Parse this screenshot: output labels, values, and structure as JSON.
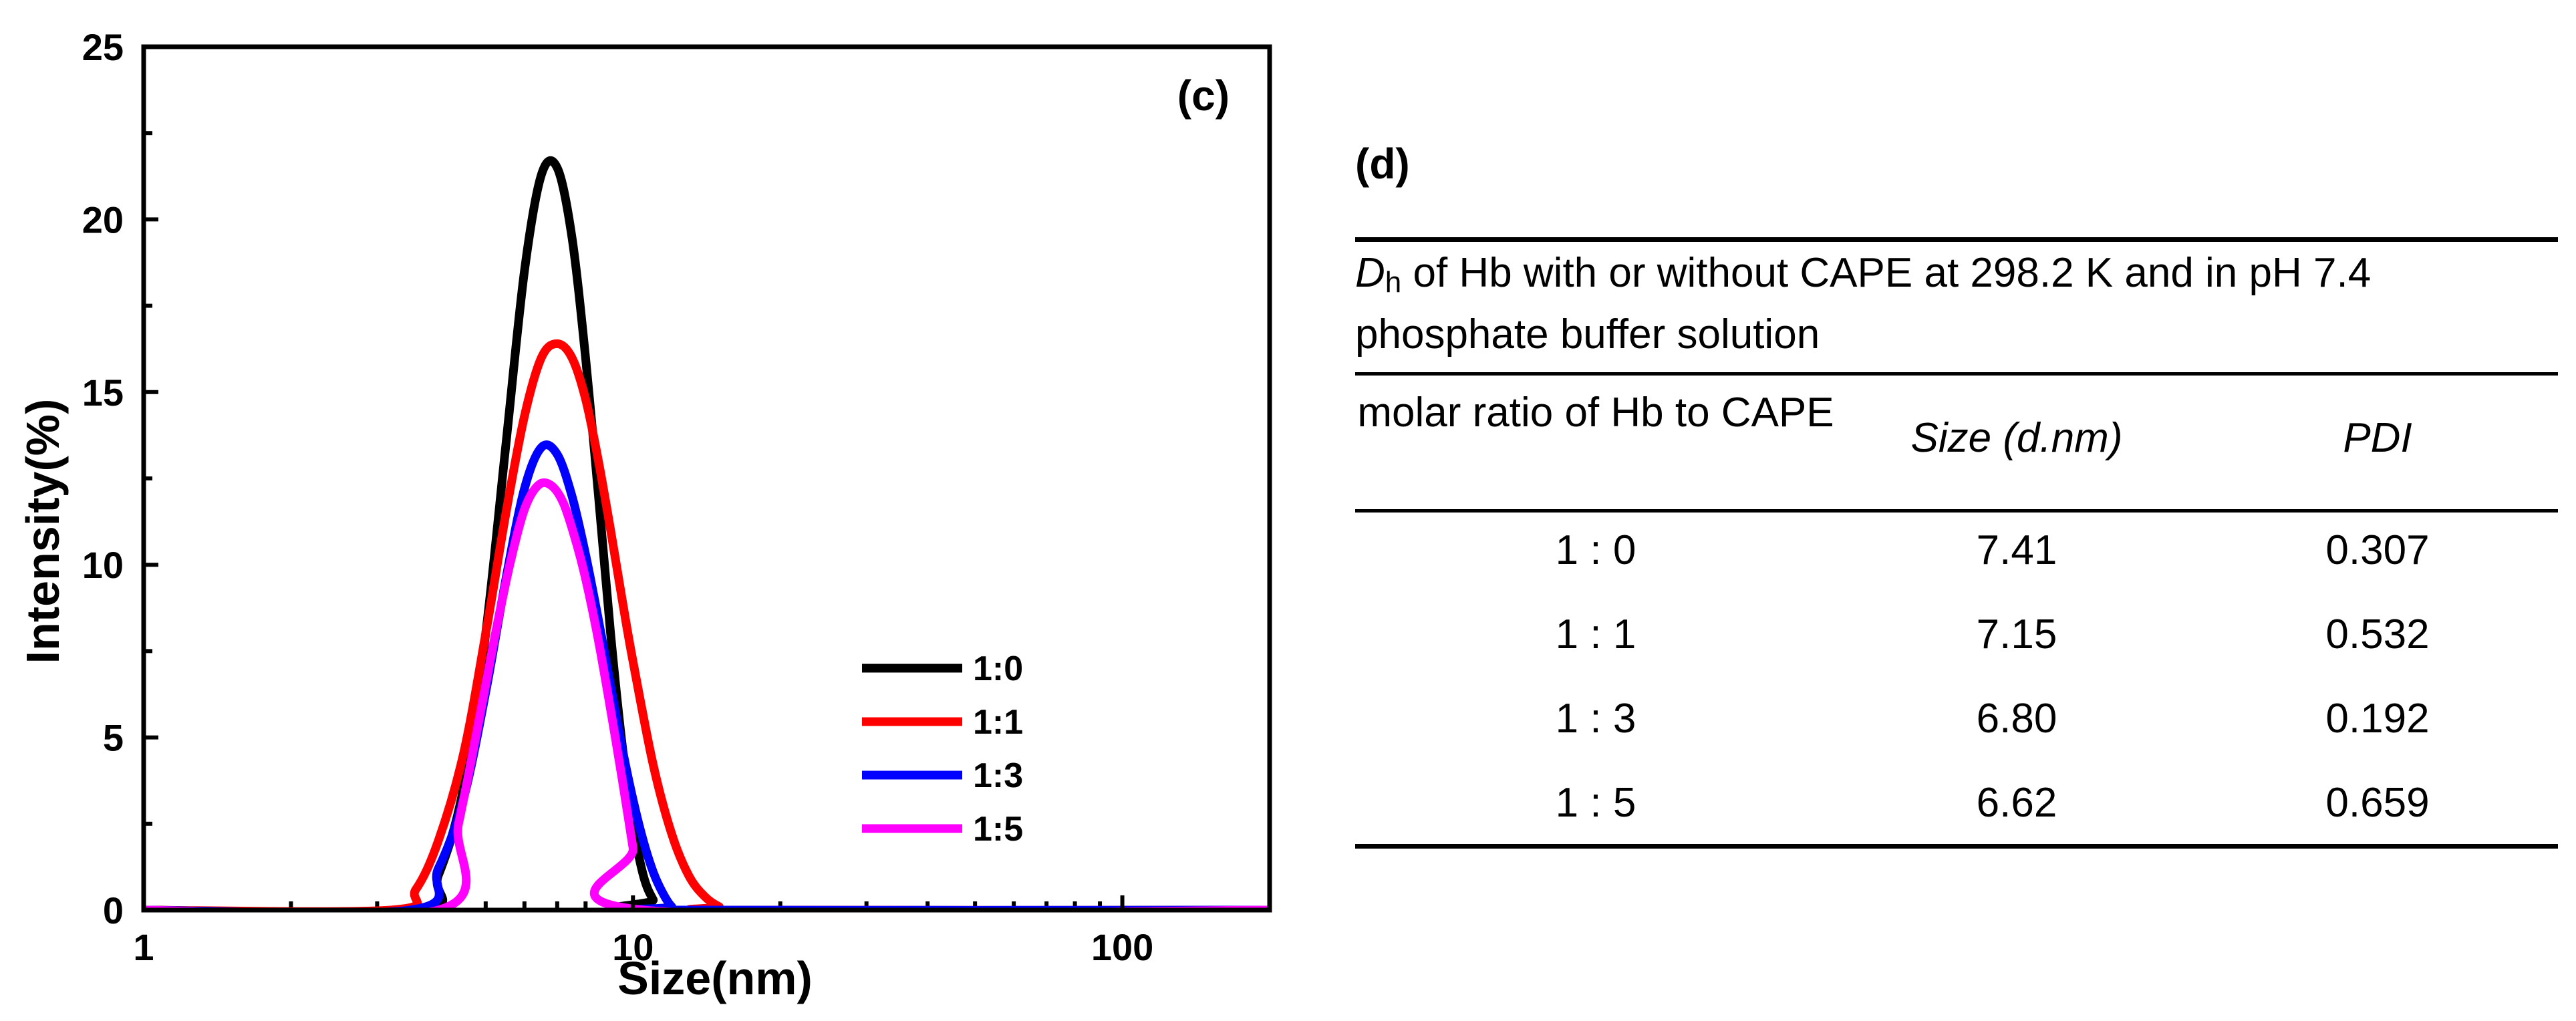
{
  "chart_data": {
    "type": "line",
    "panel_label": "(c)",
    "xlabel": "Size(nm)",
    "ylabel": "Intensity(%)",
    "x_scale": "log",
    "xlim": [
      1,
      200
    ],
    "ylim": [
      0,
      25
    ],
    "x_ticks": [
      1,
      10,
      100
    ],
    "x_tick_labels": [
      "1",
      "10",
      "100"
    ],
    "y_ticks": [
      0,
      5,
      10,
      15,
      20,
      25
    ],
    "y_tick_labels": [
      "0",
      "5",
      "10",
      "15",
      "20",
      "25"
    ],
    "legend_position": "lower-right",
    "series": [
      {
        "name": "1:0",
        "color": "#000000",
        "x": [
          1,
          3.6,
          4.0,
          4.5,
          5.0,
          5.5,
          6.0,
          6.5,
          7.0,
          7.5,
          8.0,
          8.5,
          9.0,
          9.5,
          10.0,
          10.5,
          11.0,
          11.5,
          200
        ],
        "values": [
          0,
          0,
          1.0,
          3.5,
          8.0,
          13.5,
          18.5,
          21.3,
          21.5,
          19.5,
          16.0,
          12.0,
          8.0,
          4.8,
          2.5,
          1.0,
          0.3,
          0,
          0
        ]
      },
      {
        "name": "1:1",
        "color": "#ff0000",
        "x": [
          1,
          3.2,
          3.6,
          4.0,
          4.5,
          5.0,
          5.5,
          6.0,
          6.5,
          7.0,
          7.5,
          8.0,
          8.5,
          9.0,
          9.5,
          10.0,
          11.0,
          12.0,
          13.0,
          14.0,
          15.0,
          16.0,
          200
        ],
        "values": [
          0,
          0,
          0.6,
          2.0,
          4.5,
          8.0,
          11.5,
          14.3,
          16.0,
          16.4,
          16.0,
          14.8,
          13.0,
          11.0,
          9.0,
          7.2,
          4.2,
          2.2,
          1.0,
          0.4,
          0.1,
          0,
          0
        ]
      },
      {
        "name": "1:3",
        "color": "#0000ff",
        "x": [
          1,
          3.5,
          4.0,
          4.5,
          5.0,
          5.5,
          6.0,
          6.5,
          7.0,
          7.5,
          8.0,
          8.5,
          9.0,
          9.5,
          10.0,
          10.5,
          11.0,
          11.5,
          12.0,
          12.5,
          200
        ],
        "values": [
          0,
          0,
          1.2,
          3.2,
          6.3,
          9.6,
          12.2,
          13.4,
          13.2,
          12.0,
          10.3,
          8.4,
          6.5,
          4.7,
          3.2,
          2.0,
          1.1,
          0.5,
          0.1,
          0,
          0
        ]
      },
      {
        "name": "1:5",
        "color": "#ff00ff",
        "x": [
          1,
          4.0,
          4.4,
          4.8,
          5.2,
          5.6,
          6.0,
          6.4,
          6.8,
          7.2,
          7.6,
          8.0,
          8.5,
          9.0,
          9.5,
          10.0,
          10.5,
          200
        ],
        "values": [
          0,
          0,
          2.5,
          5.2,
          7.8,
          10.0,
          11.6,
          12.3,
          12.3,
          11.8,
          10.8,
          9.6,
          7.8,
          5.8,
          3.8,
          1.8,
          0,
          0
        ]
      }
    ]
  },
  "table": {
    "panel_label": "(d)",
    "caption_symbol": "D",
    "caption_subscript": "h",
    "caption_text": " of Hb with or without CAPE at 298.2 K and in pH 7.4 phosphate buffer solution",
    "headers": [
      "molar ratio of Hb to CAPE",
      "Size (d.nm)",
      "PDI"
    ],
    "rows": [
      [
        "1 : 0",
        "7.41",
        "0.307"
      ],
      [
        "1 : 1",
        "7.15",
        "0.532"
      ],
      [
        "1 : 3",
        "6.80",
        "0.192"
      ],
      [
        "1 : 5",
        "6.62",
        "0.659"
      ]
    ]
  }
}
